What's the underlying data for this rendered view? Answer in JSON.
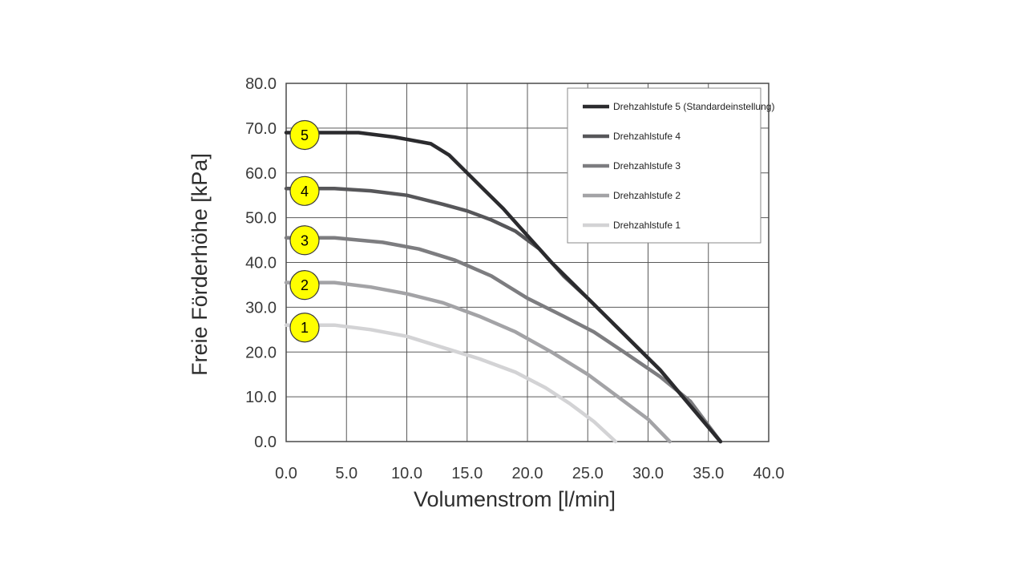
{
  "chart_data": {
    "type": "line",
    "title": "",
    "xlabel": "Volumenstrom [l/min]",
    "ylabel": "Freie Förderhöhe [kPa]",
    "xlim": [
      0,
      40
    ],
    "ylim": [
      0,
      80
    ],
    "x_ticks": [
      "0.0",
      "5.0",
      "10.0",
      "15.0",
      "20.0",
      "25.0",
      "30.0",
      "35.0",
      "40.0"
    ],
    "y_ticks": [
      "0.0",
      "10.0",
      "20.0",
      "30.0",
      "40.0",
      "50.0",
      "60.0",
      "70.0",
      "80.0"
    ],
    "grid": true,
    "legend_position": "top-right",
    "series": [
      {
        "name": "Drehzahlstufe 5 (Standardeinstellung)",
        "label": "5",
        "color": "#2b2b2e",
        "points": [
          [
            0,
            69
          ],
          [
            6,
            69
          ],
          [
            9,
            68
          ],
          [
            12,
            66.5
          ],
          [
            13.5,
            64
          ],
          [
            15,
            60
          ],
          [
            16.5,
            56
          ],
          [
            18,
            52
          ],
          [
            20,
            46
          ],
          [
            22,
            40
          ],
          [
            25,
            32
          ],
          [
            28,
            24
          ],
          [
            31,
            16
          ],
          [
            33.5,
            8
          ],
          [
            36,
            0
          ]
        ]
      },
      {
        "name": "Drehzahlstufe 4",
        "label": "4",
        "color": "#57575a",
        "points": [
          [
            0,
            56.5
          ],
          [
            4,
            56.5
          ],
          [
            7,
            56
          ],
          [
            10,
            55
          ],
          [
            13,
            53
          ],
          [
            15,
            51.5
          ],
          [
            17,
            49.5
          ],
          [
            19,
            47
          ],
          [
            21,
            43
          ],
          [
            23,
            37
          ],
          [
            25,
            32
          ],
          [
            28,
            24
          ],
          [
            31,
            16
          ],
          [
            33.5,
            8
          ],
          [
            36,
            0
          ]
        ]
      },
      {
        "name": "Drehzahlstufe 3",
        "label": "3",
        "color": "#7d7d80",
        "points": [
          [
            0,
            45.5
          ],
          [
            4,
            45.5
          ],
          [
            8,
            44.5
          ],
          [
            11,
            43
          ],
          [
            14,
            40.5
          ],
          [
            17,
            37
          ],
          [
            20,
            32
          ],
          [
            23,
            28
          ],
          [
            25.5,
            24.5
          ],
          [
            28,
            20
          ],
          [
            31,
            14.5
          ],
          [
            33.5,
            9
          ],
          [
            36,
            0
          ]
        ]
      },
      {
        "name": "Drehzahlstufe 2",
        "label": "2",
        "color": "#a3a3a6",
        "points": [
          [
            0,
            35.5
          ],
          [
            4,
            35.5
          ],
          [
            7,
            34.5
          ],
          [
            10,
            33
          ],
          [
            13,
            31
          ],
          [
            16,
            28
          ],
          [
            19,
            24.5
          ],
          [
            22,
            20
          ],
          [
            25,
            15
          ],
          [
            27.5,
            10
          ],
          [
            30,
            5
          ],
          [
            31.8,
            0
          ]
        ]
      },
      {
        "name": "Drehzahlstufe 1",
        "label": "1",
        "color": "#d3d3d5",
        "points": [
          [
            0,
            26
          ],
          [
            4,
            26
          ],
          [
            7,
            25
          ],
          [
            10,
            23.5
          ],
          [
            13,
            21
          ],
          [
            16,
            18.5
          ],
          [
            19,
            15.5
          ],
          [
            21.5,
            12
          ],
          [
            23.5,
            8.5
          ],
          [
            25.5,
            4.5
          ],
          [
            27.3,
            0
          ]
        ]
      }
    ]
  }
}
